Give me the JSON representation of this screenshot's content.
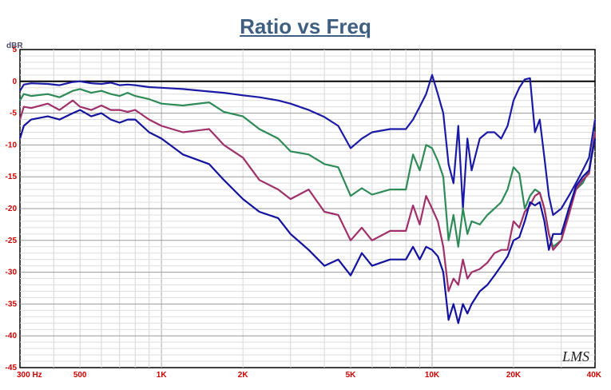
{
  "chart_data": {
    "type": "line",
    "title": "Ratio vs Freq",
    "ylabel": "dBR",
    "x_scale": "log",
    "xlim": [
      300,
      40000
    ],
    "ylim": [
      -45,
      5
    ],
    "grid": true,
    "x_tick_labels": [
      {
        "value": 300,
        "label": "300 Hz"
      },
      {
        "value": 500,
        "label": "500"
      },
      {
        "value": 1000,
        "label": "1K"
      },
      {
        "value": 2000,
        "label": "2K"
      },
      {
        "value": 5000,
        "label": "5K"
      },
      {
        "value": 10000,
        "label": "10K"
      },
      {
        "value": 20000,
        "label": "20K"
      },
      {
        "value": 40000,
        "label": "40K"
      }
    ],
    "y_ticks": [
      5,
      0,
      -5,
      -10,
      -15,
      -20,
      -25,
      -30,
      -35,
      -40,
      -45
    ],
    "y_tick_labels": [
      "5",
      "0",
      "-5",
      "-10",
      "-15",
      "-20",
      "-25",
      "-30",
      "-35",
      "-40",
      "-45"
    ],
    "reference_line": 0,
    "logo": "LMS",
    "series": [
      {
        "color": "#1a1aa6",
        "x": [
          300,
          310,
          330,
          380,
          420,
          470,
          500,
          550,
          600,
          650,
          700,
          750,
          800,
          900,
          1000,
          1200,
          1500,
          1700,
          2000,
          2300,
          2700,
          3000,
          3500,
          4000,
          4500,
          5000,
          5500,
          6000,
          7000,
          8000,
          8500,
          9000,
          9500,
          10000,
          10500,
          11000,
          11500,
          12000,
          12500,
          13000,
          13500,
          14000,
          15000,
          16000,
          17000,
          18000,
          19000,
          20000,
          21000,
          22000,
          23000,
          24000,
          25000,
          26000,
          27000,
          28000,
          30000,
          32000,
          34000,
          36000,
          38000,
          40000
        ],
        "y": [
          -1.5,
          -0.5,
          -0.3,
          -0.4,
          -0.6,
          -0.1,
          0.0,
          -0.3,
          -0.4,
          -0.2,
          -0.6,
          -0.5,
          -0.6,
          -0.9,
          -1.0,
          -1.2,
          -1.6,
          -1.8,
          -2.2,
          -2.5,
          -3.0,
          -3.5,
          -4.5,
          -5.6,
          -7.0,
          -10.5,
          -9.0,
          -8.0,
          -7.5,
          -7.5,
          -6.0,
          -4.0,
          -2.0,
          1.0,
          -2.0,
          -5.0,
          -13.0,
          -16.0,
          -7.0,
          -20.0,
          -9.0,
          -14.0,
          -9.0,
          -8.0,
          -8.0,
          -9.0,
          -7.0,
          -3.0,
          -1.0,
          0.3,
          0.5,
          -8.0,
          -6.0,
          -12.0,
          -18.0,
          -21.0,
          -20.0,
          -18.0,
          -16.0,
          -14.0,
          -12.0,
          -6.0
        ]
      },
      {
        "color": "#2e8b57",
        "x": [
          300,
          310,
          330,
          380,
          420,
          470,
          500,
          550,
          600,
          650,
          700,
          750,
          800,
          900,
          1000,
          1200,
          1500,
          1700,
          2000,
          2300,
          2700,
          3000,
          3500,
          4000,
          4500,
          5000,
          5500,
          6000,
          7000,
          8000,
          8500,
          9000,
          9500,
          10000,
          10500,
          11000,
          11500,
          12000,
          12500,
          13000,
          13500,
          14000,
          15000,
          16000,
          17000,
          18000,
          19000,
          20000,
          21000,
          22000,
          23000,
          24000,
          25000,
          26000,
          27000,
          28000,
          30000,
          32000,
          34000,
          36000,
          38000,
          40000
        ],
        "y": [
          -3.0,
          -2.0,
          -2.3,
          -2.0,
          -2.5,
          -1.5,
          -1.2,
          -1.8,
          -1.5,
          -2.0,
          -2.3,
          -1.8,
          -2.3,
          -2.8,
          -3.5,
          -3.8,
          -3.3,
          -4.8,
          -5.5,
          -7.5,
          -9.0,
          -11.0,
          -11.5,
          -13.0,
          -13.5,
          -18.0,
          -16.8,
          -17.8,
          -17.0,
          -17.0,
          -11.5,
          -14.0,
          -10.0,
          -10.5,
          -12.5,
          -15.0,
          -25.0,
          -21.0,
          -26.0,
          -20.0,
          -24.0,
          -22.0,
          -22.5,
          -21.0,
          -20.0,
          -19.0,
          -17.0,
          -13.5,
          -14.5,
          -20.0,
          -18.0,
          -17.0,
          -17.5,
          -20.0,
          -24.0,
          -26.0,
          -25.0,
          -20.0,
          -17.0,
          -16.0,
          -14.0,
          -8.0
        ]
      },
      {
        "color": "#a0306a",
        "x": [
          300,
          310,
          330,
          380,
          420,
          470,
          500,
          550,
          600,
          650,
          700,
          750,
          800,
          900,
          1000,
          1200,
          1500,
          1700,
          2000,
          2300,
          2700,
          3000,
          3500,
          4000,
          4500,
          5000,
          5500,
          6000,
          7000,
          8000,
          8500,
          9000,
          9500,
          10000,
          10500,
          11000,
          11500,
          12000,
          12500,
          13000,
          13500,
          14000,
          15000,
          16000,
          17000,
          18000,
          19000,
          20000,
          21000,
          22000,
          23000,
          24000,
          25000,
          26000,
          27000,
          28000,
          30000,
          32000,
          34000,
          36000,
          38000,
          40000
        ],
        "y": [
          -6.0,
          -4.0,
          -4.2,
          -3.5,
          -4.5,
          -3.0,
          -4.0,
          -4.5,
          -3.8,
          -4.5,
          -4.5,
          -4.8,
          -4.5,
          -6.0,
          -7.0,
          -8.0,
          -7.5,
          -10.0,
          -12.0,
          -15.5,
          -17.0,
          -18.5,
          -17.0,
          -20.5,
          -21.0,
          -25.0,
          -23.0,
          -25.0,
          -23.5,
          -23.5,
          -19.5,
          -22.5,
          -18.0,
          -20.0,
          -22.0,
          -26.0,
          -33.0,
          -31.0,
          -32.0,
          -28.0,
          -31.0,
          -30.0,
          -29.5,
          -28.5,
          -27.0,
          -26.5,
          -26.5,
          -22.0,
          -23.0,
          -20.5,
          -19.5,
          -18.0,
          -17.5,
          -20.0,
          -24.0,
          -26.5,
          -25.0,
          -21.0,
          -17.0,
          -15.5,
          -14.5,
          -8.0
        ]
      },
      {
        "color": "#12129e",
        "x": [
          300,
          310,
          330,
          380,
          420,
          470,
          500,
          550,
          600,
          650,
          700,
          750,
          800,
          900,
          1000,
          1200,
          1500,
          1700,
          2000,
          2300,
          2700,
          3000,
          3500,
          4000,
          4500,
          5000,
          5500,
          6000,
          7000,
          8000,
          8500,
          9000,
          9500,
          10000,
          10500,
          11000,
          11500,
          12000,
          12500,
          13000,
          13500,
          14000,
          15000,
          16000,
          17000,
          18000,
          19000,
          20000,
          21000,
          22000,
          23000,
          24000,
          25000,
          26000,
          27000,
          28000,
          30000,
          32000,
          34000,
          36000,
          38000,
          40000
        ],
        "y": [
          -9.0,
          -7.0,
          -6.0,
          -5.5,
          -6.0,
          -5.0,
          -4.5,
          -5.5,
          -5.0,
          -6.0,
          -6.5,
          -6.0,
          -6.0,
          -8.0,
          -9.0,
          -11.5,
          -13.0,
          -15.5,
          -18.5,
          -20.5,
          -21.5,
          -24.0,
          -26.5,
          -29.0,
          -28.0,
          -30.5,
          -27.0,
          -29.0,
          -28.0,
          -28.0,
          -26.0,
          -28.0,
          -26.0,
          -26.5,
          -27.5,
          -30.0,
          -37.5,
          -35.0,
          -38.0,
          -35.0,
          -36.5,
          -35.0,
          -33.0,
          -32.0,
          -30.5,
          -29.0,
          -27.5,
          -25.0,
          -24.5,
          -22.0,
          -19.0,
          -19.5,
          -19.0,
          -22.0,
          -26.5,
          -24.0,
          -24.0,
          -20.0,
          -16.5,
          -15.0,
          -14.0,
          -9.0
        ]
      }
    ]
  }
}
